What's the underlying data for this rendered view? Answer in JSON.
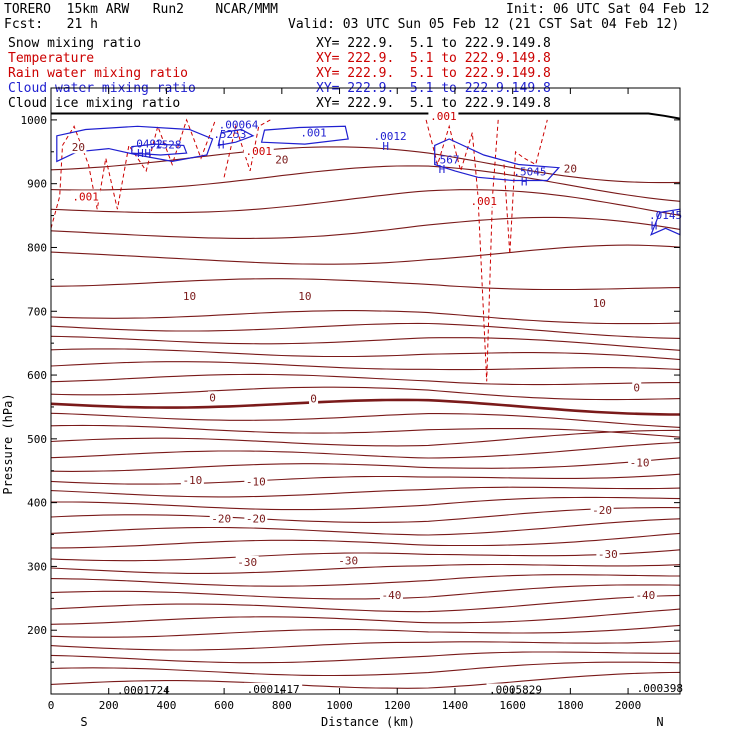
{
  "header": {
    "title_left": "TORERO  15km ARW   Run2    NCAR/MMM",
    "init": "Init: 06 UTC Sat 04 Feb 12",
    "fcst": "Fcst:   21 h",
    "valid": "Valid: 03 UTC Sun 05 Feb 12 (21 CST Sat 04 Feb 12)"
  },
  "legend": [
    {
      "label": "Snow mixing ratio",
      "coords": "XY= 222.9.  5.1 to 222.9.149.8",
      "color": "#000000"
    },
    {
      "label": "Temperature",
      "coords": "XY= 222.9.  5.1 to 222.9.149.8",
      "color": "#cc0000"
    },
    {
      "label": "Rain water mixing ratio",
      "coords": "XY= 222.9.  5.1 to 222.9.149.8",
      "color": "#cc0000"
    },
    {
      "label": "Cloud water mixing ratio",
      "coords": "XY= 222.9.  5.1 to 222.9.149.8",
      "color": "#1f1fd0"
    },
    {
      "label": "Cloud ice mixing ratio",
      "coords": "XY= 222.9.  5.1 to 222.9.149.8",
      "color": "#000000"
    }
  ],
  "chart_data": {
    "type": "contour-cross-section",
    "xlabel": "Distance (km)",
    "ylabel": "Pressure (hPa)",
    "xlim": [
      0,
      2180
    ],
    "ylim": [
      1050,
      100
    ],
    "x_ticks": [
      "0",
      "200",
      "400",
      "600",
      "800",
      "1000",
      "1200",
      "1400",
      "1600",
      "1800",
      "2000"
    ],
    "x_tick_values": [
      0,
      200,
      400,
      600,
      800,
      1000,
      1200,
      1400,
      1600,
      1800,
      2000
    ],
    "y_ticks": [
      "200",
      "300",
      "400",
      "500",
      "600",
      "700",
      "800",
      "900",
      "1000"
    ],
    "y_tick_values": [
      200,
      300,
      400,
      500,
      600,
      700,
      800,
      900,
      1000
    ],
    "end_labels": {
      "left": "S",
      "right": "N"
    },
    "temperature_isotherm_labels": [
      {
        "text": "-40",
        "x": 1180,
        "p": 252
      },
      {
        "text": "-40",
        "x": 2060,
        "p": 252
      },
      {
        "text": "-30",
        "x": 680,
        "p": 304
      },
      {
        "text": "-30",
        "x": 1030,
        "p": 306
      },
      {
        "text": "-30",
        "x": 1930,
        "p": 316
      },
      {
        "text": "-20",
        "x": 590,
        "p": 372
      },
      {
        "text": "-20",
        "x": 710,
        "p": 372
      },
      {
        "text": "-20",
        "x": 1910,
        "p": 385
      },
      {
        "text": "-10",
        "x": 490,
        "p": 432
      },
      {
        "text": "-10",
        "x": 710,
        "p": 430
      },
      {
        "text": "-10",
        "x": 2040,
        "p": 460
      },
      {
        "text": "0",
        "x": 560,
        "p": 562
      },
      {
        "text": "0",
        "x": 910,
        "p": 560
      },
      {
        "text": "0",
        "x": 2030,
        "p": 577
      },
      {
        "text": "10",
        "x": 480,
        "p": 721
      },
      {
        "text": "10",
        "x": 880,
        "p": 721
      },
      {
        "text": "10",
        "x": 1900,
        "p": 710
      },
      {
        "text": "20",
        "x": 95,
        "p": 954
      },
      {
        "text": "20",
        "x": 800,
        "p": 935
      },
      {
        "text": "20",
        "x": 1800,
        "p": 921
      }
    ],
    "top_values": [
      {
        "text": ".0001724",
        "x": 320,
        "p": 103
      },
      {
        "text": ".0001417",
        "x": 770,
        "p": 105
      },
      {
        "text": ".0005829",
        "x": 1610,
        "p": 104
      },
      {
        "text": ".000398",
        "x": 2110,
        "p": 106
      }
    ],
    "rain_labels": [
      {
        "text": ".001",
        "x": 120,
        "p": 877
      },
      {
        "text": ".001",
        "x": 720,
        "p": 948
      },
      {
        "text": ".001",
        "x": 1500,
        "p": 870
      },
      {
        "text": ".001",
        "x": 1360,
        "p": 1003
      }
    ],
    "cloud_water_labels": [
      {
        "text": "H",
        "x": 310,
        "p": 945
      },
      {
        "text": "H",
        "x": 335,
        "p": 945
      },
      {
        "text": ".0492",
        "x": 330,
        "p": 960
      },
      {
        "text": ".1528",
        "x": 395,
        "p": 958
      },
      {
        "text": "H",
        "x": 590,
        "p": 958
      },
      {
        "text": ".5253",
        "x": 620,
        "p": 975
      },
      {
        "text": ".00064",
        "x": 650,
        "p": 990
      },
      {
        "text": ".001",
        "x": 910,
        "p": 977
      },
      {
        "text": "H",
        "x": 1160,
        "p": 956
      },
      {
        "text": ".0012",
        "x": 1175,
        "p": 972
      },
      {
        "text": "H",
        "x": 1355,
        "p": 920
      },
      {
        "text": ".567",
        "x": 1370,
        "p": 935
      },
      {
        "text": "H",
        "x": 1640,
        "p": 900
      },
      {
        "text": ".5045",
        "x": 1660,
        "p": 916
      },
      {
        "text": "H",
        "x": 2090,
        "p": 831
      },
      {
        "text": ".0145",
        "x": 2130,
        "p": 848
      }
    ]
  }
}
